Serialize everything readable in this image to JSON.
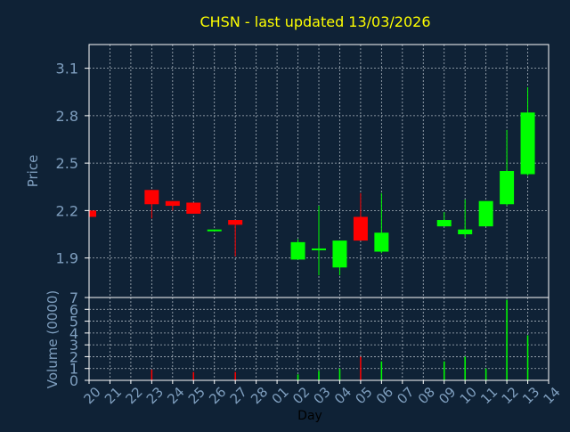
{
  "chart_data": [
    {
      "type": "candlestick",
      "title": "CHSN - last updated 13/03/2026",
      "ylabel": "Price",
      "ylim": [
        1.65,
        3.25
      ],
      "yticks": [
        1.9,
        2.2,
        2.5,
        2.8,
        3.1
      ],
      "ytick_labels": [
        "1.9",
        "2.2",
        "2.5",
        "2.8",
        "3.1"
      ],
      "grid": true,
      "up_color": "#00ff00",
      "down_color": "#ff0000",
      "candles": [
        {
          "x": "20",
          "open": 2.2,
          "close": 2.16,
          "high": 2.2,
          "low": 2.16
        },
        {
          "x": "23",
          "open": 2.33,
          "close": 2.24,
          "high": 2.33,
          "low": 2.15
        },
        {
          "x": "24",
          "open": 2.26,
          "close": 2.23,
          "high": 2.26,
          "low": 2.2
        },
        {
          "x": "25",
          "open": 2.25,
          "close": 2.18,
          "high": 2.25,
          "low": 2.18
        },
        {
          "x": "26",
          "open": 2.07,
          "close": 2.08,
          "high": 2.08,
          "low": 2.07
        },
        {
          "x": "27",
          "open": 2.14,
          "close": 2.11,
          "high": 2.14,
          "low": 1.91
        },
        {
          "x": "02",
          "open": 1.89,
          "close": 2.0,
          "high": 2.02,
          "low": 1.89
        },
        {
          "x": "03",
          "open": 1.95,
          "close": 1.96,
          "high": 2.23,
          "low": 1.79
        },
        {
          "x": "04",
          "open": 1.84,
          "close": 2.01,
          "high": 2.01,
          "low": 1.79
        },
        {
          "x": "05",
          "open": 2.16,
          "close": 2.01,
          "high": 2.31,
          "low": 2.01
        },
        {
          "x": "06",
          "open": 1.94,
          "close": 2.06,
          "high": 2.31,
          "low": 1.93
        },
        {
          "x": "09",
          "open": 2.1,
          "close": 2.14,
          "high": 2.19,
          "low": 2.1
        },
        {
          "x": "10",
          "open": 2.05,
          "close": 2.08,
          "high": 2.27,
          "low": 2.03
        },
        {
          "x": "11",
          "open": 2.1,
          "close": 2.26,
          "high": 2.26,
          "low": 2.1
        },
        {
          "x": "12",
          "open": 2.24,
          "close": 2.45,
          "high": 2.71,
          "low": 2.23
        },
        {
          "x": "13",
          "open": 2.43,
          "close": 2.82,
          "high": 2.98,
          "low": 2.42
        }
      ]
    },
    {
      "type": "bar",
      "ylabel": "Volume (0000)",
      "xlabel": "Day",
      "ylim": [
        0,
        7
      ],
      "yticks": [
        0,
        1,
        2,
        3,
        4,
        5,
        6,
        7
      ],
      "ytick_labels": [
        "0",
        "1",
        "2",
        "3",
        "4",
        "5",
        "6",
        "7"
      ],
      "categories": [
        "20",
        "21",
        "22",
        "23",
        "24",
        "25",
        "26",
        "27",
        "28",
        "01",
        "02",
        "03",
        "04",
        "05",
        "06",
        "07",
        "08",
        "09",
        "10",
        "11",
        "12",
        "13",
        "14"
      ],
      "volumes": [
        {
          "x": "23",
          "value": 0.9,
          "color": "#ff0000"
        },
        {
          "x": "25",
          "value": 0.7,
          "color": "#ff0000"
        },
        {
          "x": "27",
          "value": 0.7,
          "color": "#ff0000"
        },
        {
          "x": "02",
          "value": 0.5,
          "color": "#00ff00"
        },
        {
          "x": "03",
          "value": 0.8,
          "color": "#00ff00"
        },
        {
          "x": "04",
          "value": 1.0,
          "color": "#00ff00"
        },
        {
          "x": "05",
          "value": 2.0,
          "color": "#ff0000"
        },
        {
          "x": "06",
          "value": 1.6,
          "color": "#00ff00"
        },
        {
          "x": "09",
          "value": 1.6,
          "color": "#00ff00"
        },
        {
          "x": "10",
          "value": 2.0,
          "color": "#00ff00"
        },
        {
          "x": "11",
          "value": 1.0,
          "color": "#00ff00"
        },
        {
          "x": "12",
          "value": 6.8,
          "color": "#00ff00"
        },
        {
          "x": "13",
          "value": 3.8,
          "color": "#00ff00"
        }
      ]
    }
  ],
  "colors": {
    "background": "#0f2236",
    "plot_border": "#ffffff",
    "grid": "#aab4be",
    "title": "#ffff00",
    "axis_text": "#7f9fbf",
    "xlabel_text": "#000000"
  }
}
